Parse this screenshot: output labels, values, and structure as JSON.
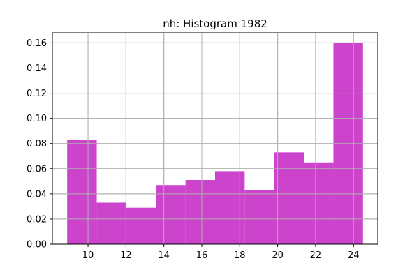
{
  "chart_data": {
    "type": "bar",
    "subtype": "histogram",
    "title": "nh: Histogram 1982",
    "xlabel": "",
    "ylabel": "",
    "bin_edges": [
      8.9,
      10.46,
      12.02,
      13.58,
      15.14,
      16.7,
      18.26,
      19.82,
      21.38,
      22.94,
      24.5
    ],
    "values": [
      0.083,
      0.033,
      0.029,
      0.047,
      0.051,
      0.058,
      0.043,
      0.073,
      0.065,
      0.16
    ],
    "xlim": [
      8.12,
      25.28
    ],
    "ylim": [
      0,
      0.168
    ],
    "xticks": [
      10,
      12,
      14,
      16,
      18,
      20,
      22,
      24
    ],
    "xtick_labels": [
      "10",
      "12",
      "14",
      "16",
      "18",
      "20",
      "22",
      "24"
    ],
    "yticks": [
      0,
      0.02,
      0.04,
      0.06,
      0.08,
      0.1,
      0.12,
      0.14,
      0.16
    ],
    "ytick_labels": [
      "0.00",
      "0.02",
      "0.04",
      "0.06",
      "0.08",
      "0.10",
      "0.12",
      "0.14",
      "0.16"
    ],
    "grid": true,
    "legend": "none",
    "bar_color": "#cc44cc",
    "grid_color": "#b0b0b0"
  }
}
